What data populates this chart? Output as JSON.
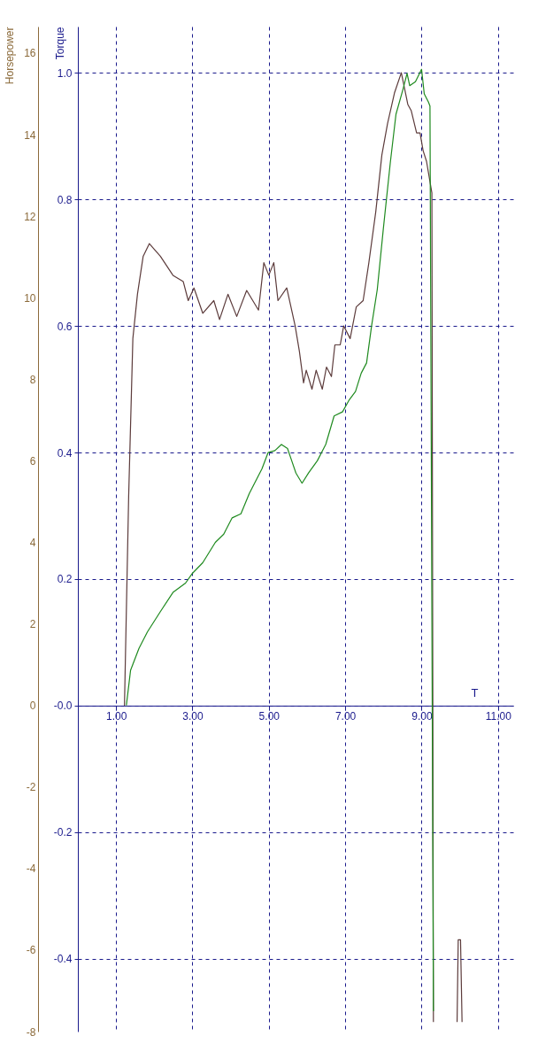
{
  "chart_data": {
    "type": "line",
    "xlabel": "T",
    "ylabel": "Torque",
    "y2label": "Horsepower",
    "grid": true,
    "xlim": [
      0,
      11.4
    ],
    "xticks": [
      {
        "value": 1,
        "label": "1.00"
      },
      {
        "value": 3,
        "label": "3.00"
      },
      {
        "value": 5,
        "label": "5.00"
      },
      {
        "value": 7,
        "label": "7.00"
      },
      {
        "value": 9,
        "label": "9.00"
      },
      {
        "value": 11,
        "label": "11.00"
      }
    ],
    "ylim": [
      -0.515,
      1.073
    ],
    "yticks": [
      -0.4,
      -0.2,
      {
        "value": 0,
        "label": "-0.0"
      },
      0.2,
      0.4,
      0.6,
      0.8,
      {
        "value": 1,
        "label": "1.0"
      }
    ],
    "y2lim": [
      -8,
      16.65
    ],
    "y2ticks": [
      -8,
      -6,
      -4,
      -2,
      0,
      2,
      4,
      6,
      8,
      10,
      12,
      14,
      16
    ],
    "series": [
      {
        "color": "#5c3b3b",
        "x": [
          1.22,
          1.33,
          1.44,
          1.56,
          1.71,
          1.87,
          2.16,
          2.49,
          2.76,
          2.89,
          3.04,
          3.27,
          3.56,
          3.71,
          3.93,
          4.16,
          4.42,
          4.73,
          4.87,
          5.0,
          5.13,
          5.24,
          5.47,
          5.69,
          5.8,
          5.91,
          5.98,
          6.13,
          6.24,
          6.4,
          6.51,
          6.64,
          6.73,
          6.87,
          6.96,
          7.13,
          7.29,
          7.47,
          7.62,
          7.8,
          7.96,
          8.11,
          8.29,
          8.47,
          8.64,
          8.73,
          8.87,
          8.96,
          9.04,
          9.13,
          9.27,
          9.31
        ],
        "values": [
          0,
          0.33,
          0.58,
          0.65,
          0.71,
          0.73,
          0.71,
          0.68,
          0.67,
          0.64,
          0.66,
          0.62,
          0.64,
          0.61,
          0.65,
          0.615,
          0.656,
          0.625,
          0.7,
          0.68,
          0.7,
          0.64,
          0.66,
          0.6,
          0.56,
          0.51,
          0.53,
          0.5,
          0.53,
          0.5,
          0.535,
          0.52,
          0.57,
          0.57,
          0.6,
          0.58,
          0.63,
          0.64,
          0.7,
          0.78,
          0.87,
          0.92,
          0.968,
          1.0,
          0.95,
          0.94,
          0.905,
          0.905,
          0.877,
          0.86,
          0.81,
          -0.5
        ]
      },
      {
        "color": "#5c3b3b",
        "x": [
          9.93,
          9.96,
          10.02,
          10.06
        ],
        "values": [
          -0.5,
          -0.37,
          -0.37,
          -0.5
        ]
      },
      {
        "color": "#1f8a1f",
        "axis": "y2",
        "x": [
          1.27,
          1.38,
          1.6,
          1.82,
          2.16,
          2.49,
          2.82,
          3.0,
          3.27,
          3.6,
          3.82,
          4.04,
          4.27,
          4.49,
          4.71,
          4.82,
          4.98,
          5.16,
          5.33,
          5.49,
          5.6,
          5.71,
          5.87,
          6.04,
          6.27,
          6.49,
          6.71,
          6.93,
          7.11,
          7.27,
          7.42,
          7.56,
          7.69,
          7.84,
          8.0,
          8.18,
          8.33,
          8.51,
          8.62,
          8.69,
          8.84,
          9.0,
          9.07,
          9.18,
          9.22,
          9.31
        ],
        "values": [
          0,
          0.86,
          1.4,
          1.8,
          2.3,
          2.77,
          3.0,
          3.24,
          3.5,
          4.0,
          4.2,
          4.6,
          4.7,
          5.2,
          5.6,
          5.8,
          6.2,
          6.25,
          6.4,
          6.3,
          6.0,
          5.7,
          5.45,
          5.7,
          6.0,
          6.4,
          7.1,
          7.2,
          7.5,
          7.7,
          8.15,
          8.4,
          9.3,
          10.2,
          11.7,
          13.3,
          14.5,
          15.1,
          15.5,
          15.2,
          15.3,
          15.6,
          15.0,
          14.8,
          14.7,
          -7.5
        ]
      }
    ]
  }
}
